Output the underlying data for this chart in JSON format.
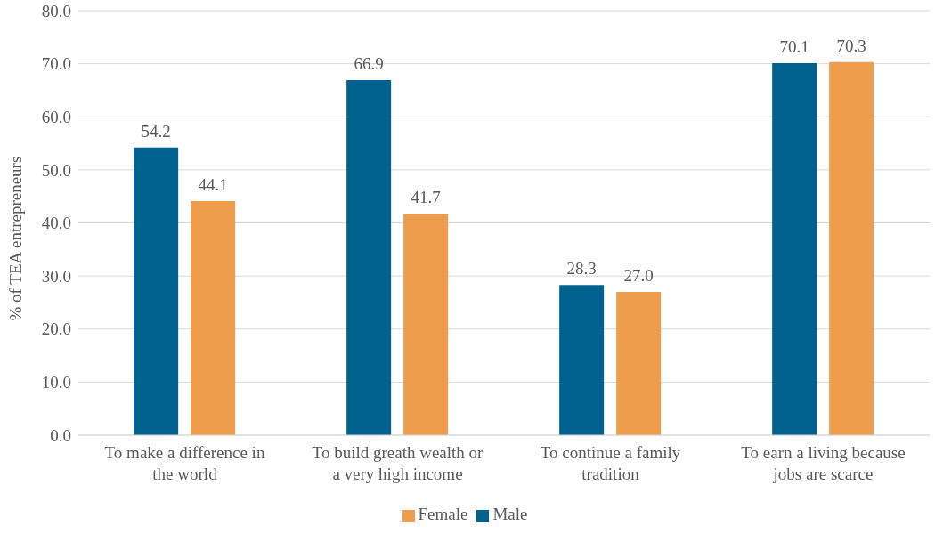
{
  "chart_data": {
    "type": "bar",
    "ylabel": "% of TEA entrepreneurs",
    "categories": [
      "To make a difference in the world",
      "To build greath wealth or a very high income",
      "To continue a family tradition",
      "To earn a living because jobs are scarce"
    ],
    "series": [
      {
        "name": "Male",
        "color": "#00628f",
        "values": [
          54.2,
          66.9,
          28.3,
          70.1
        ],
        "value_labels": [
          "54.2",
          "66.9",
          "28.3",
          "70.1"
        ]
      },
      {
        "name": "Female",
        "color": "#ee9d4c",
        "values": [
          44.1,
          41.7,
          27.0,
          70.3
        ],
        "value_labels": [
          "44.1",
          "41.7",
          "27.0",
          "70.3"
        ]
      }
    ],
    "ylim": [
      0,
      80
    ],
    "yticks": [
      {
        "value": 0,
        "label": "0.0"
      },
      {
        "value": 10,
        "label": "10.0"
      },
      {
        "value": 20,
        "label": "20.0"
      },
      {
        "value": 30,
        "label": "30.0"
      },
      {
        "value": 40,
        "label": "40.0"
      },
      {
        "value": 50,
        "label": "50.0"
      },
      {
        "value": 60,
        "label": "60.0"
      },
      {
        "value": 70,
        "label": "70.0"
      },
      {
        "value": 80,
        "label": "80.0"
      }
    ],
    "grid": "y",
    "legend": "bottom"
  }
}
